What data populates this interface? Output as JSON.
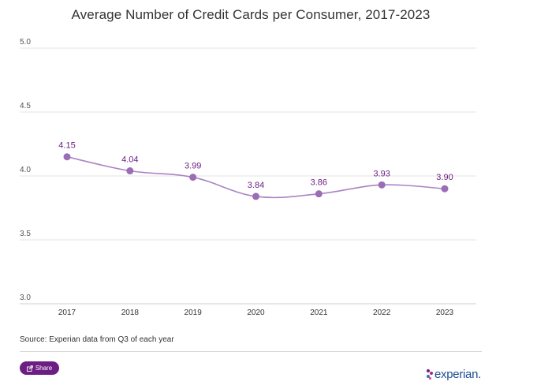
{
  "chart_data": {
    "type": "line",
    "title": "Average Number of Credit Cards per Consumer, 2017-2023",
    "categories": [
      "2017",
      "2018",
      "2019",
      "2020",
      "2021",
      "2022",
      "2023"
    ],
    "values": [
      4.15,
      4.04,
      3.99,
      3.84,
      3.86,
      3.93,
      3.9
    ],
    "value_labels": [
      "4.15",
      "4.04",
      "3.99",
      "3.84",
      "3.86",
      "3.93",
      "3.90"
    ],
    "yticks": [
      "5.0",
      "4.5",
      "4.0",
      "3.5",
      "3.0"
    ],
    "ytick_values": [
      5.0,
      4.5,
      4.0,
      3.5,
      3.0
    ],
    "ylim": [
      3.0,
      5.0
    ],
    "xlabel": "",
    "ylabel": "",
    "grid": true,
    "line_color": "#a984c4",
    "marker_color": "#9a6db5",
    "label_color": "#6d1e82"
  },
  "footer": {
    "source": "Source: Experian data from Q3 of each year",
    "share_label": "Share",
    "logo_text": "experian."
  },
  "colors": {
    "brand_purple": "#6d1e82",
    "logo_blue": "#1d4f91",
    "grid": "#e3e3e3"
  }
}
